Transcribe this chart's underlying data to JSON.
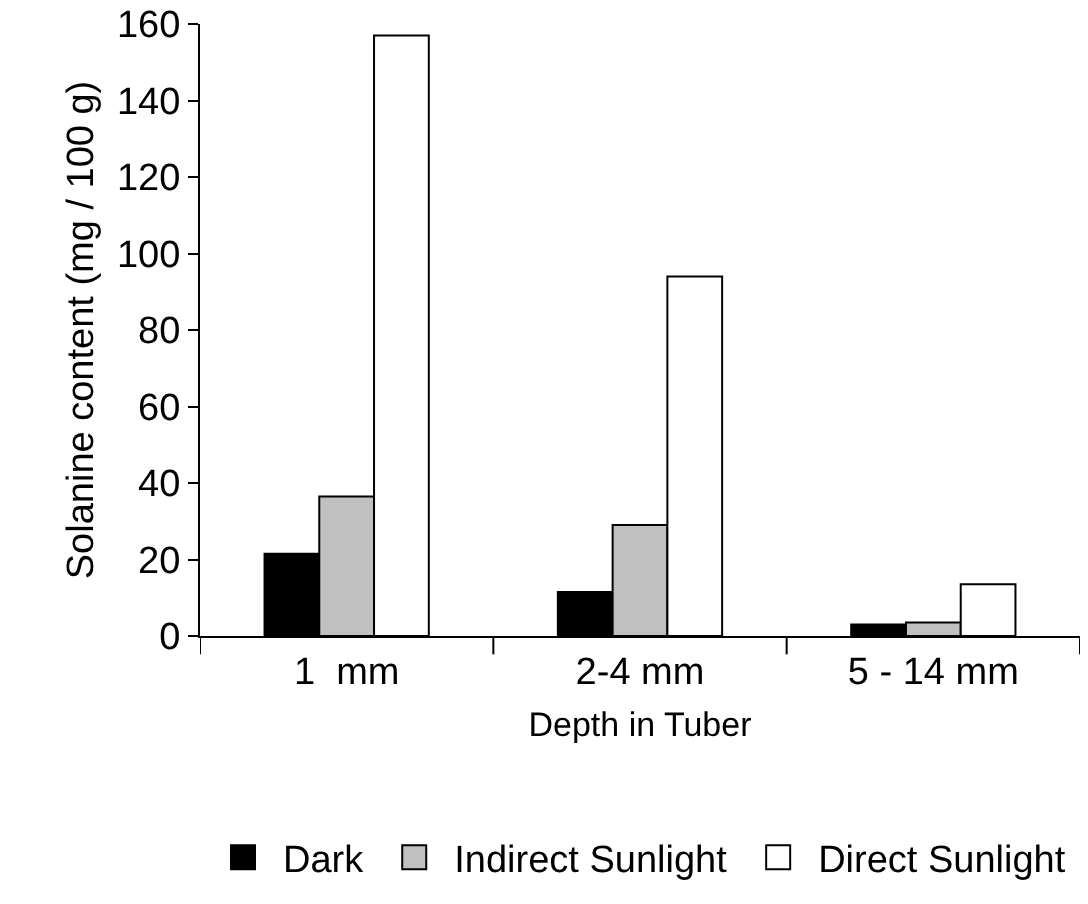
{
  "chart_data": {
    "type": "bar",
    "xlabel": "Depth in Tuber",
    "ylabel": "Solanine content (mg / 100 g)",
    "categories": [
      "1  mm",
      "2-4 mm",
      "5 - 14 mm"
    ],
    "series": [
      {
        "name": "Dark",
        "color": "#000000",
        "values": [
          21.5,
          11.5,
          3
        ]
      },
      {
        "name": "Indirect Sunlight",
        "color": "#c0c0c0",
        "values": [
          36.5,
          29,
          3.5
        ]
      },
      {
        "name": "Direct Sunlight",
        "color": "#ffffff",
        "values": [
          157,
          94,
          13.5
        ]
      }
    ],
    "ylim": [
      0,
      160
    ],
    "yticks": [
      0,
      20,
      40,
      60,
      80,
      100,
      120,
      140,
      160
    ],
    "grid": false,
    "legend": "bottom"
  }
}
